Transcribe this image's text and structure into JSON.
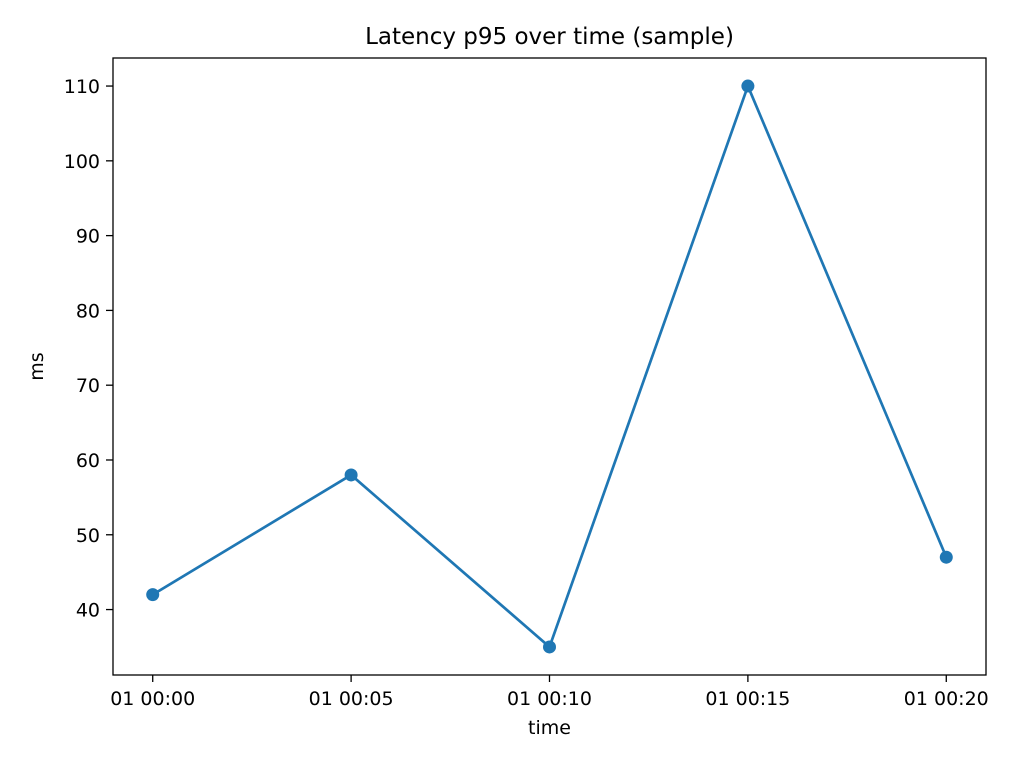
{
  "chart_data": {
    "type": "line",
    "title": "Latency p95 over time (sample)",
    "xlabel": "time",
    "ylabel": "ms",
    "x": [
      "01 00:00",
      "01 00:05",
      "01 00:10",
      "01 00:15",
      "01 00:20"
    ],
    "series": [
      {
        "values": [
          42,
          58,
          35,
          110,
          47
        ],
        "color": "#1f77b4",
        "marker": "circle"
      }
    ],
    "x_ticks": [
      "01 00:00",
      "01 00:05",
      "01 00:10",
      "01 00:15",
      "01 00:20"
    ],
    "y_ticks": [
      40,
      50,
      60,
      70,
      80,
      90,
      100,
      110
    ],
    "ylim": [
      31.25,
      113.75
    ],
    "grid": false,
    "legend": "none"
  }
}
